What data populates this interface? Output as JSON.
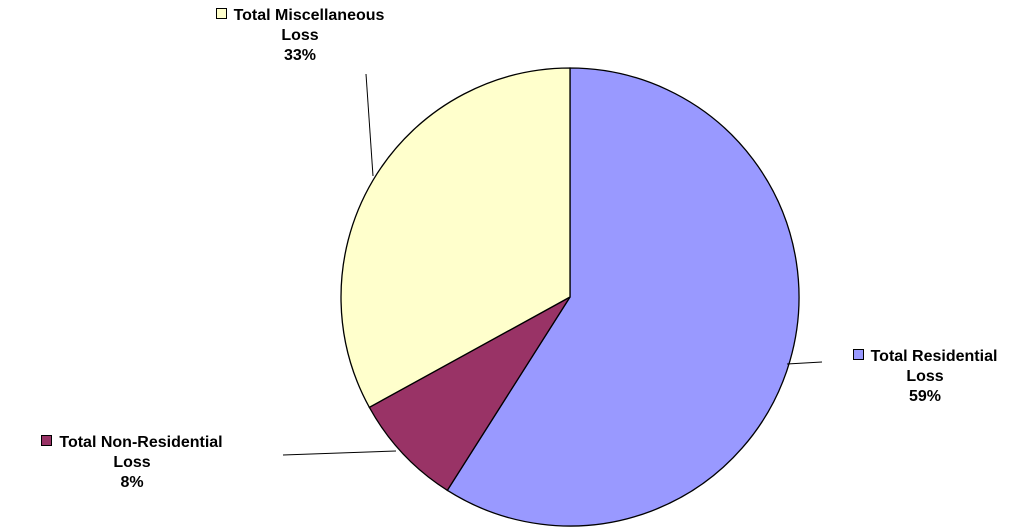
{
  "chart_data": {
    "type": "pie",
    "title": "",
    "start_angle_deg": 0,
    "direction": "clockwise",
    "slices": [
      {
        "label_line1": "Total Residential",
        "label_line2": "Loss",
        "pct_text": "59%",
        "value": 59,
        "color": "#9999FF"
      },
      {
        "label_line1": "Total Non-Residential",
        "label_line2": "Loss",
        "pct_text": "8%",
        "value": 8,
        "color": "#993366"
      },
      {
        "label_line1": "Total Miscellaneous",
        "label_line2": "Loss",
        "pct_text": "33%",
        "value": 33,
        "color": "#FFFFCC"
      }
    ],
    "legend": "none",
    "data_labels": "outside with leader lines"
  }
}
